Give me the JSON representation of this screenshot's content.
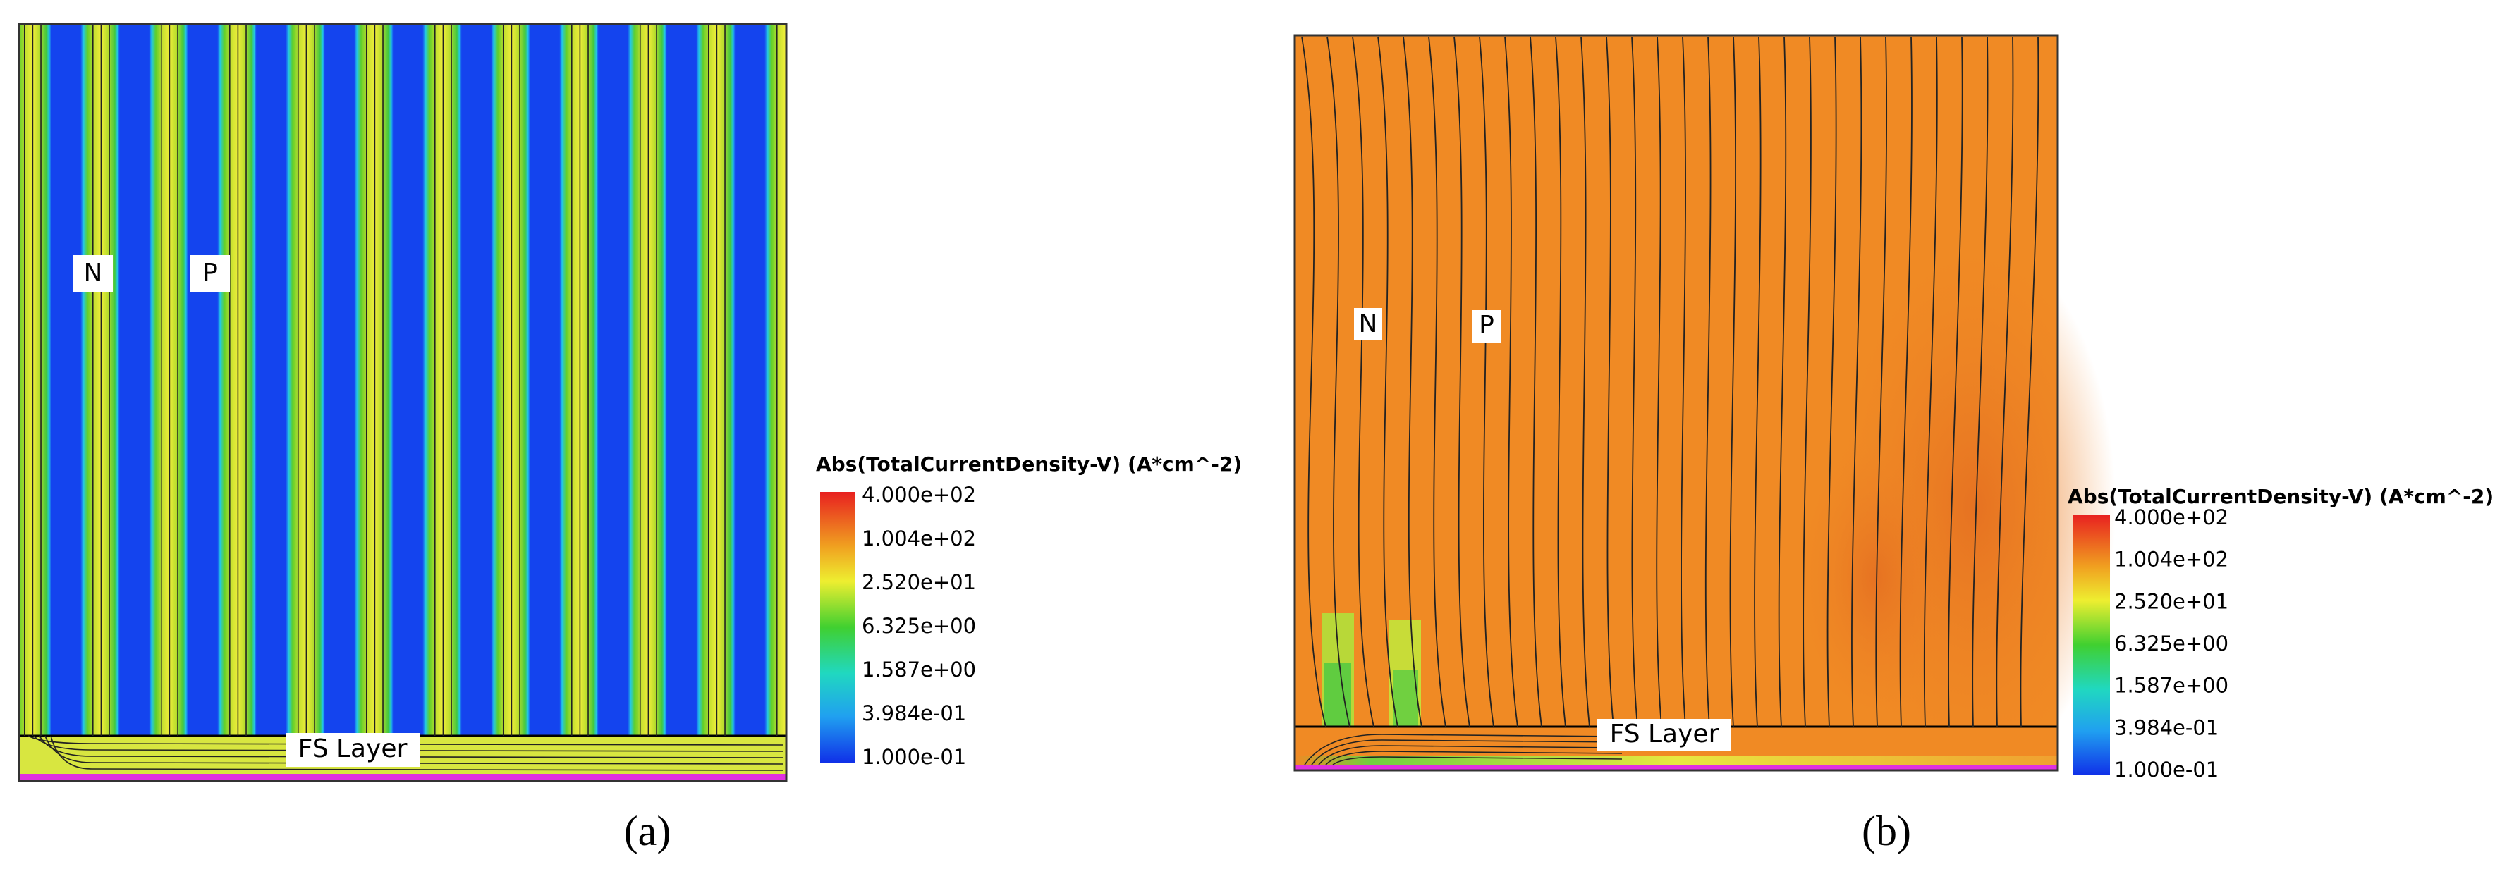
{
  "panels": [
    {
      "caption": "(a)",
      "labels": {
        "n": "N",
        "p": "P",
        "fs_layer": "FS Layer"
      },
      "colorbar": {
        "title": "Abs(TotalCurrentDensity-V) (A*cm^-2)",
        "ticks": [
          "4.000e+02",
          "1.004e+02",
          "2.520e+01",
          "6.325e+00",
          "1.587e+00",
          "3.984e-01",
          "1.000e-01"
        ]
      }
    },
    {
      "caption": "(b)",
      "labels": {
        "n": "N",
        "p": "P",
        "fs_layer": "FS Layer"
      },
      "colorbar": {
        "title": "Abs(TotalCurrentDensity-V) (A*cm^-2)",
        "ticks": [
          "4.000e+02",
          "1.004e+02",
          "2.520e+01",
          "6.325e+00",
          "1.587e+00",
          "3.984e-01",
          "1.000e-01"
        ]
      }
    }
  ]
}
